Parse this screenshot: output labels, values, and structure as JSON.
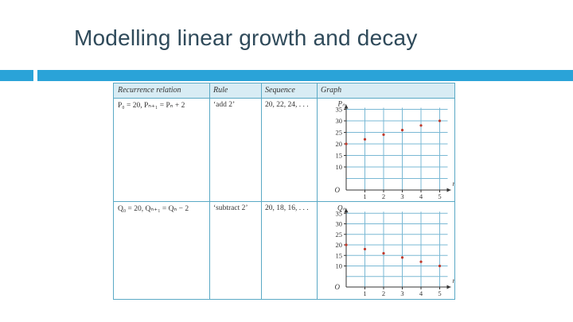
{
  "slide": {
    "title": "Modelling linear growth and decay"
  },
  "table": {
    "headers": [
      "Recurrence relation",
      "Rule",
      "Sequence",
      "Graph"
    ],
    "rows": [
      {
        "relation": "P₀ = 20, Pₙ₊₁ = Pₙ + 2",
        "rule": "‘add 2’",
        "sequence": "20, 22, 24, . . ."
      },
      {
        "relation": "Q₀ = 20, Qₙ₊₁ = Qₙ − 2",
        "rule": "‘subtract 2’",
        "sequence": "20, 18, 16, . . ."
      }
    ]
  },
  "chart_data": [
    {
      "type": "scatter",
      "ylabel": "Pₙ",
      "xlabel": "n",
      "origin_label": "O",
      "x": [
        0,
        1,
        2,
        3,
        4,
        5
      ],
      "y": [
        20,
        22,
        24,
        26,
        28,
        30
      ],
      "xticks": [
        "1",
        "2",
        "3",
        "4",
        "5"
      ],
      "yticks": [
        "10",
        "15",
        "20",
        "25",
        "30",
        "35"
      ],
      "ylim": [
        0,
        35
      ],
      "xlim": [
        0,
        5
      ],
      "grid": true,
      "point_color": "#c0392b"
    },
    {
      "type": "scatter",
      "ylabel": "Qₙ",
      "xlabel": "n",
      "origin_label": "O",
      "x": [
        0,
        1,
        2,
        3,
        4,
        5
      ],
      "y": [
        20,
        18,
        16,
        14,
        12,
        10
      ],
      "xticks": [
        "1",
        "2",
        "3",
        "4",
        "5"
      ],
      "yticks": [
        "10",
        "15",
        "20",
        "25",
        "30",
        "35"
      ],
      "ylim": [
        0,
        35
      ],
      "xlim": [
        0,
        5
      ],
      "grid": true,
      "point_color": "#c0392b"
    }
  ]
}
